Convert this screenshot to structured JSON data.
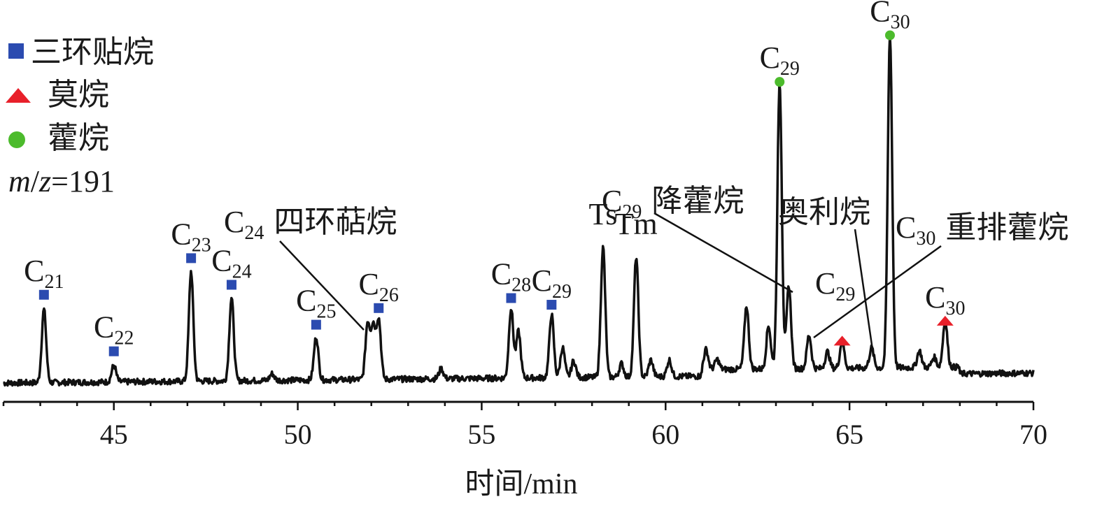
{
  "chart_data": {
    "type": "line",
    "xlabel": "时间/min",
    "ylabel": "",
    "xlim": [
      42,
      70
    ],
    "xticks": [
      45,
      50,
      55,
      60,
      65,
      70
    ],
    "grid": false,
    "legend_position": "top-left",
    "legend": [
      {
        "marker": "square",
        "color": "#2b4bb0",
        "label": "三环贴烷"
      },
      {
        "marker": "triangle",
        "color": "#e8202a",
        "label": "莫烷"
      },
      {
        "marker": "circle",
        "color": "#4cbb2c",
        "label": "藿烷"
      }
    ],
    "mz": {
      "italic_m": "m",
      "slash": "/",
      "italic_z": "z",
      "rest": "=191"
    },
    "colors": {
      "trace": "#111111",
      "square": "#2b4bb0",
      "triangle": "#e8202a",
      "circle": "#4cbb2c"
    },
    "peaks": [
      {
        "x": 43.1,
        "height": 0.22,
        "marker": "square",
        "label": "C",
        "sub": "21"
      },
      {
        "x": 45.0,
        "height": 0.05,
        "marker": "square",
        "label": "C",
        "sub": "22"
      },
      {
        "x": 47.1,
        "height": 0.33,
        "marker": "square",
        "label": "C",
        "sub": "23"
      },
      {
        "x": 48.2,
        "height": 0.25,
        "marker": "square",
        "label": "C",
        "sub": "24"
      },
      {
        "x": 50.5,
        "height": 0.13,
        "marker": "square",
        "label": "C",
        "sub": "25"
      },
      {
        "x": 52.2,
        "height": 0.18,
        "marker": "square",
        "label": "C",
        "sub": "26"
      },
      {
        "x": 55.8,
        "height": 0.21,
        "marker": "square",
        "label": "C",
        "sub": "28"
      },
      {
        "x": 56.9,
        "height": 0.19,
        "marker": "square",
        "label": "C",
        "sub": "29"
      },
      {
        "x": 58.3,
        "height": 0.39,
        "marker": "none",
        "label": "Ts",
        "sub": ""
      },
      {
        "x": 59.2,
        "height": 0.36,
        "marker": "none",
        "label": "Tm",
        "sub": ""
      },
      {
        "x": 63.1,
        "height": 0.86,
        "marker": "circle",
        "label": "C",
        "sub": "29"
      },
      {
        "x": 64.8,
        "height": 0.08,
        "marker": "triangle",
        "label": "",
        "sub": ""
      },
      {
        "x": 66.1,
        "height": 1.0,
        "marker": "circle",
        "label": "C",
        "sub": "30"
      },
      {
        "x": 67.6,
        "height": 0.14,
        "marker": "triangle",
        "label": "C",
        "sub": "30"
      }
    ],
    "callouts": [
      {
        "x": 51.9,
        "prefix": "C",
        "sub": "24",
        "text": "四环萜烷"
      },
      {
        "x": 63.4,
        "prefix": "C",
        "sub": "29",
        "text": "降藿烷"
      },
      {
        "x": 65.7,
        "prefix": "",
        "sub": "",
        "text": "奥利烷"
      },
      {
        "x": 63.9,
        "prefix": "C",
        "sub": "30",
        "text": "重排藿烷"
      },
      {
        "x": 65.3,
        "prefix": "C",
        "sub": "29",
        "text": ""
      }
    ]
  }
}
